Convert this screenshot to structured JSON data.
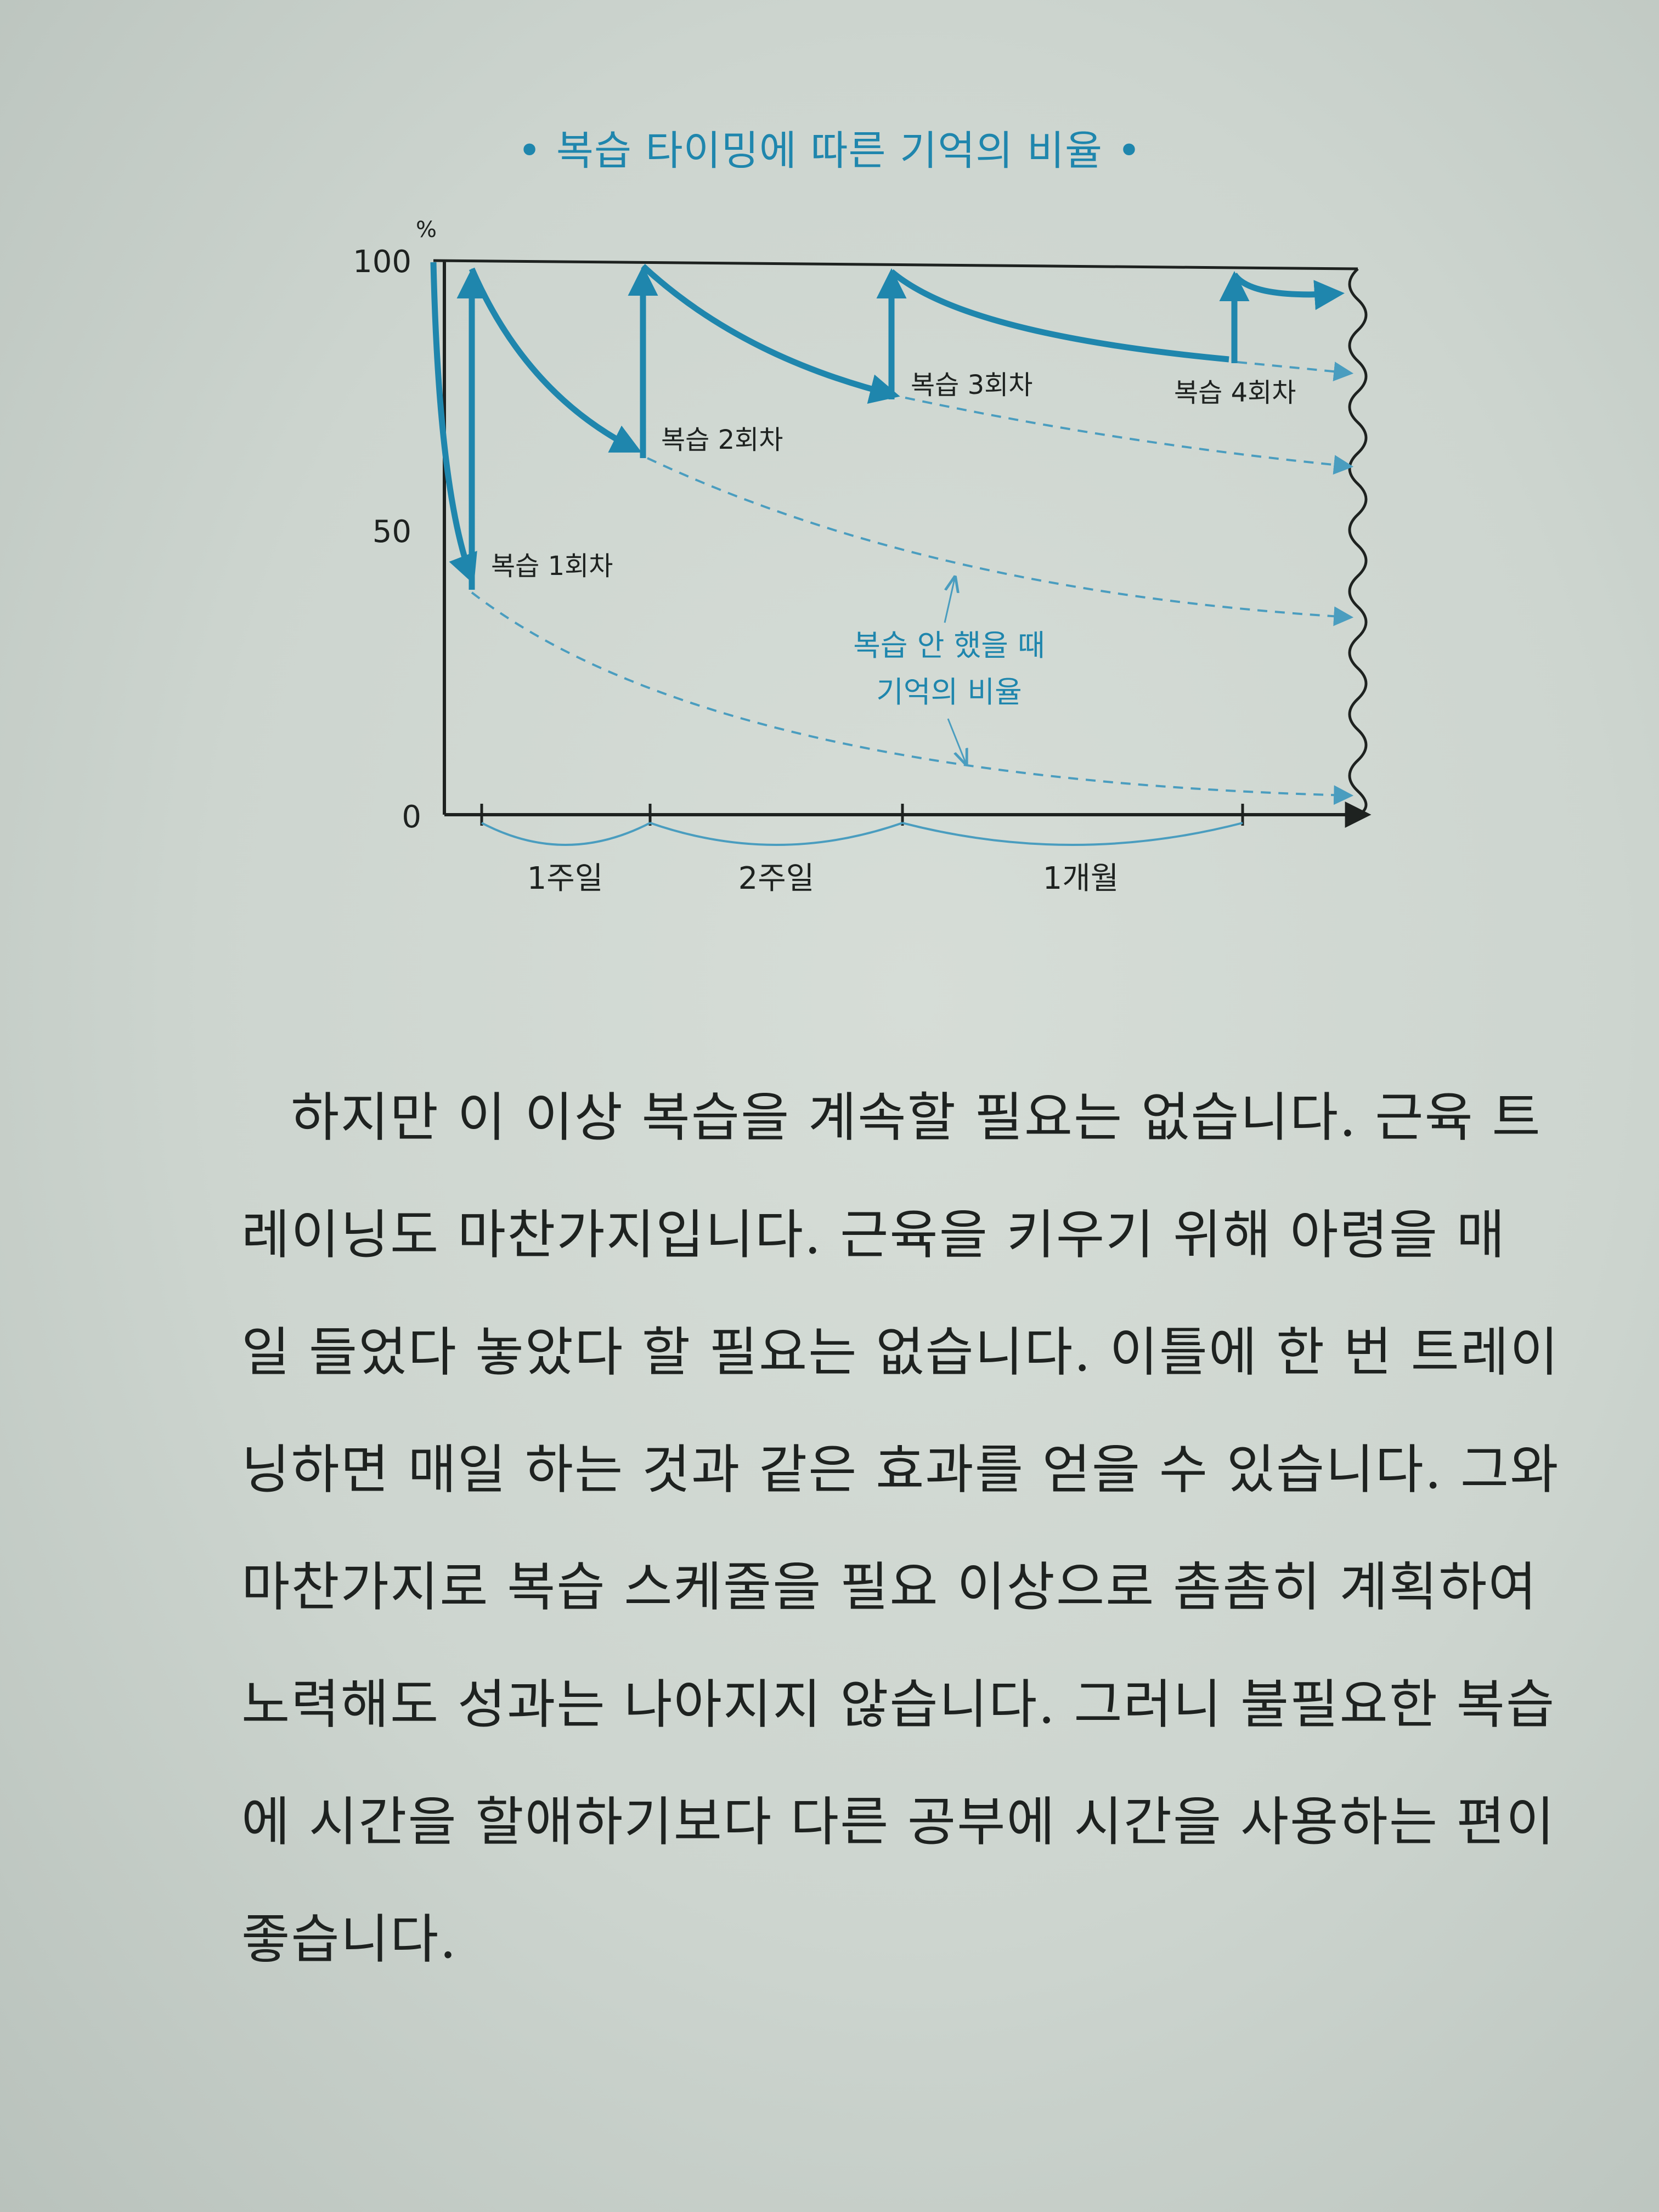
{
  "chart_title": "복습 타이밍에 따른 기억의 비율",
  "chart_data": {
    "type": "line",
    "title": "복습 타이밍에 따른 기억의 비율",
    "y_unit": "%",
    "y_ticks": [
      "100",
      "50",
      "0"
    ],
    "ylim": [
      0,
      100
    ],
    "x_intervals": [
      "1주일",
      "2주일",
      "1개월"
    ],
    "review_labels": [
      "복습 1회차",
      "복습 2회차",
      "복습 3회차",
      "복습 4회차"
    ],
    "annotation": [
      "복습 안 했을 때",
      "기억의 비율"
    ],
    "series": [
      {
        "points_note": "with review",
        "x": [
          0,
          1,
          1,
          2,
          2,
          3,
          3,
          4,
          4,
          5
        ],
        "values": [
          100,
          42,
          100,
          66,
          100,
          75,
          100,
          82,
          100,
          95
        ]
      }
    ],
    "grid": false
  },
  "body_lines": [
    "하지만 이 이상 복습을 계속할 필요는 없습니다. 근육 트",
    "레이닝도 마찬가지입니다. 근육을 키우기 위해 아령을 매",
    "일 들었다 놓았다 할 필요는 없습니다. 이틀에 한 번 트레이",
    "닝하면 매일 하는 것과 같은 효과를 얻을 수 있습니다. 그와",
    "마찬가지로 복습 스케줄을 필요 이상으로 촘촘히 계획하여",
    "노력해도 성과는 나아지지 않습니다. 그러니 불필요한 복습",
    "에 시간을 할애하기보다 다른 공부에 시간을 사용하는 편이",
    "좋습니다."
  ],
  "colors": {
    "accent": "#1f86ad",
    "dashed": "#4a9dbf",
    "axis": "#1e2220",
    "text": "#1e2220"
  }
}
